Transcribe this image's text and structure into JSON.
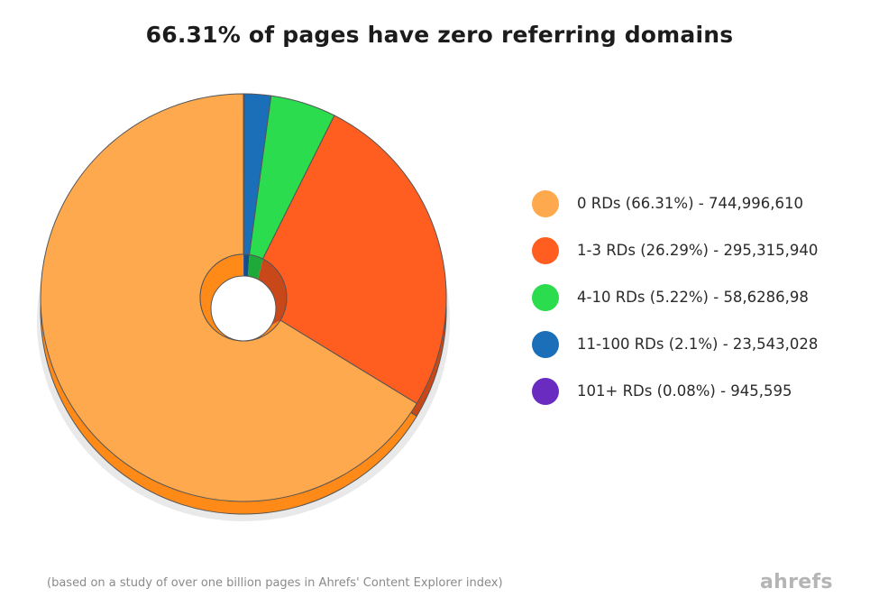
{
  "chart_data": {
    "type": "pie",
    "title": "66.31% of pages have zero referring domains",
    "categories": [
      "0 RDs (66.31%) - 744,996,610",
      "1-3 RDs (26.29%) - 295,315,940",
      "4-10 RDs (5.22%) - 58,6286,98",
      "11-100 RDs (2.1%) - 23,543,028",
      "101+ RDs (0.08%) - 945,595"
    ],
    "values": [
      66.31,
      26.29,
      5.22,
      2.1,
      0.08
    ],
    "colors": [
      "#FFA94E",
      "#FF5E20",
      "#2BDC4E",
      "#1A6FB8",
      "#6A2BC0"
    ],
    "side_colors": [
      "#FF8A18",
      "#C9481A",
      "#1EA93A",
      "#124F86",
      "#4E1F90"
    ],
    "legend_position": "right",
    "start": "top",
    "direction": "counter-clockwise",
    "donut": true
  },
  "footnote": "(based on a study of over one billion pages in Ahrefs' Content Explorer index)",
  "brand": {
    "logo_text": "ahrefs"
  }
}
